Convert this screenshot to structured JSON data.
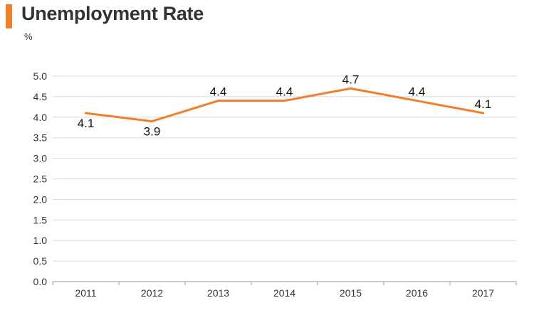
{
  "header": {
    "title": "Unemployment Rate",
    "unit": "%"
  },
  "colors": {
    "accent": "#f07f2a",
    "line": "#f07f2a",
    "grid": "#d9d9d9",
    "axis": "#999999"
  },
  "chart_data": {
    "type": "line",
    "title": "Unemployment Rate",
    "xlabel": "",
    "ylabel": "%",
    "categories": [
      "2011",
      "2012",
      "2013",
      "2014",
      "2015",
      "2016",
      "2017"
    ],
    "series": [
      {
        "values": [
          4.1,
          3.9,
          4.4,
          4.4,
          4.7,
          4.4,
          4.1
        ]
      }
    ],
    "data_labels": [
      "4.1",
      "3.9",
      "4.4",
      "4.4",
      "4.7",
      "4.4",
      "4.1"
    ],
    "ylim": [
      0,
      5.0
    ],
    "yticks": [
      "0.0",
      "0.5",
      "1.0",
      "1.5",
      "2.0",
      "2.5",
      "3.0",
      "3.5",
      "4.0",
      "4.5",
      "5.0"
    ],
    "grid": true,
    "legend": "none"
  }
}
